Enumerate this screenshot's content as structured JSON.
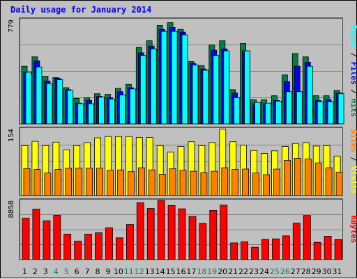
{
  "chart_data": {
    "type": "bar",
    "title": "Daily usage for January 2014",
    "categories": [
      "1",
      "2",
      "3",
      "4",
      "5",
      "6",
      "7",
      "8",
      "9",
      "10",
      "11",
      "12",
      "13",
      "14",
      "15",
      "16",
      "17",
      "18",
      "19",
      "20",
      "21",
      "22",
      "23",
      "24",
      "25",
      "26",
      "27",
      "28",
      "29",
      "30",
      "31"
    ],
    "weekend_days": [
      "4",
      "5",
      "11",
      "12",
      "18",
      "19",
      "25",
      "26"
    ],
    "panels": [
      {
        "name": "hits-files-pages",
        "ymax_label": "779",
        "ylim": [
          0,
          779
        ],
        "series": [
          {
            "name": "Hits",
            "color": "#008040",
            "values": [
              430,
              500,
              355,
              345,
              270,
              190,
              195,
              225,
              220,
              265,
              295,
              570,
              620,
              735,
              755,
              705,
              465,
              435,
              590,
              620,
              255,
              600,
              180,
              180,
              210,
              365,
              525,
              500,
              210,
              210,
              250
            ]
          },
          {
            "name": "Files",
            "color": "#0000ff",
            "values": [
              385,
              470,
              320,
              340,
              255,
              155,
              175,
              205,
              195,
              240,
              270,
              530,
              580,
              705,
              720,
              685,
              450,
              410,
              550,
              560,
              230,
              545,
              150,
              150,
              175,
              315,
              430,
              460,
              175,
              180,
              230
            ]
          },
          {
            "name": "Pages",
            "color": "#00ffff",
            "values": [
              385,
              425,
              300,
              330,
              250,
              150,
              150,
              200,
              185,
              215,
              260,
              510,
              560,
              690,
              690,
              665,
              440,
              400,
              510,
              545,
              195,
              545,
              160,
              155,
              170,
              240,
              240,
              430,
              165,
              165,
              225
            ]
          }
        ]
      },
      {
        "name": "visits-sites",
        "ymax_label": "154",
        "ylim": [
          0,
          154
        ],
        "series": [
          {
            "name": "Visits",
            "color": "#ffff00",
            "values": [
              115,
              125,
              115,
              123,
              105,
              115,
              122,
              133,
              136,
              136,
              136,
              134,
              134,
              115,
              100,
              113,
              124,
              115,
              122,
              153,
              124,
              116,
              104,
              97,
              103,
              113,
              120,
              122,
              114,
              115,
              91
            ]
          },
          {
            "name": "Sites",
            "color": "#ff8000",
            "values": [
              62,
              60,
              52,
              60,
              63,
              63,
              63,
              63,
              58,
              59,
              55,
              64,
              59,
              49,
              62,
              58,
              56,
              53,
              56,
              64,
              60,
              61,
              52,
              48,
              61,
              81,
              86,
              84,
              75,
              64,
              54
            ]
          }
        ]
      },
      {
        "name": "kbytes",
        "ymax_label": "8858",
        "ylim": [
          0,
          8858
        ],
        "series": [
          {
            "name": "KBytes",
            "color": "#ff0000",
            "values": [
              6200,
              7550,
              5800,
              6620,
              3800,
              2750,
              3800,
              4000,
              4750,
              3250,
              5250,
              8500,
              7650,
              8858,
              8100,
              7600,
              6450,
              5400,
              7350,
              8150,
              2500,
              2650,
              1850,
              3000,
              3100,
              3550,
              5450,
              6600,
              2580,
              3500,
              2980
            ]
          }
        ]
      }
    ],
    "right_labels": [
      {
        "parts": [
          {
            "text": "Pages",
            "color": "#00ffff"
          },
          {
            "text": " / ",
            "color": "#000000"
          },
          {
            "text": "Files",
            "color": "#0000ff"
          },
          {
            "text": " / ",
            "color": "#000000"
          },
          {
            "text": "Hits",
            "color": "#008040"
          }
        ]
      },
      {
        "parts": [
          {
            "text": "Sites",
            "color": "#ff8000"
          },
          {
            "text": " / ",
            "color": "#000000"
          },
          {
            "text": "Visits",
            "color": "#ffff00"
          }
        ]
      },
      {
        "parts": [
          {
            "text": "KBytes",
            "color": "#ff0000"
          }
        ]
      }
    ],
    "weekday_color": "#000000",
    "weekend_color": "#00805c",
    "grid": true
  }
}
